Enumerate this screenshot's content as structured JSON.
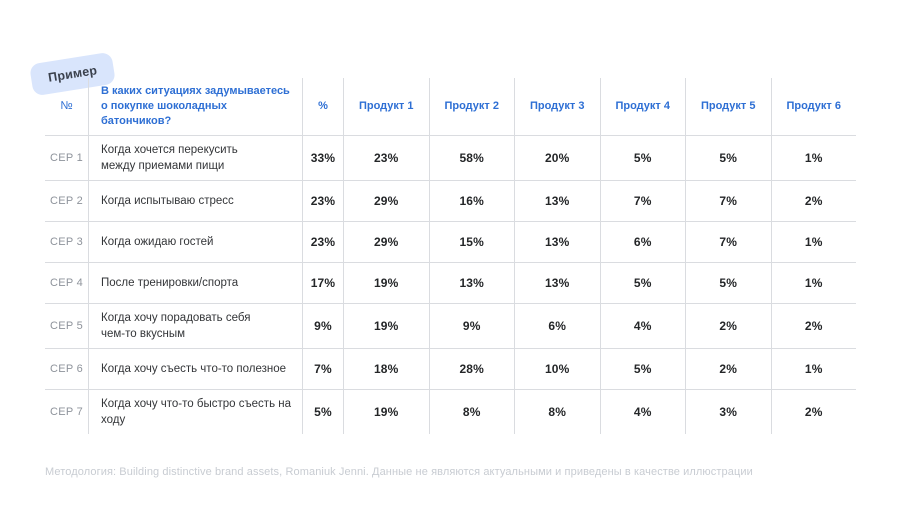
{
  "badge": {
    "label": "Пример"
  },
  "table": {
    "headers": {
      "num": "№",
      "question": "В каких ситуациях задумываетесь\nо покупке шоколадных батончиков?",
      "percent": "%",
      "products": [
        "Продукт 1",
        "Продукт 2",
        "Продукт 3",
        "Продукт 4",
        "Продукт 5",
        "Продукт 6"
      ]
    },
    "rows": [
      {
        "id": "CEP 1",
        "question": "Когда хочется перекусить\nмежду приемами пищи",
        "values": [
          "33%",
          "23%",
          "58%",
          "20%",
          "5%",
          "5%",
          "1%"
        ]
      },
      {
        "id": "CEP 2",
        "question": "Когда испытываю стресс",
        "values": [
          "23%",
          "29%",
          "16%",
          "13%",
          "7%",
          "7%",
          "2%"
        ]
      },
      {
        "id": "CEP 3",
        "question": "Когда ожидаю гостей",
        "values": [
          "23%",
          "29%",
          "15%",
          "13%",
          "6%",
          "7%",
          "1%"
        ]
      },
      {
        "id": "CEP 4",
        "question": "После тренировки/спорта",
        "values": [
          "17%",
          "19%",
          "13%",
          "13%",
          "5%",
          "5%",
          "1%"
        ]
      },
      {
        "id": "CEP 5",
        "question": "Когда хочу порадовать себя\nчем-то вкусным",
        "values": [
          "9%",
          "19%",
          "9%",
          "6%",
          "4%",
          "2%",
          "2%"
        ]
      },
      {
        "id": "CEP 6",
        "question": "Когда хочу съесть что-то полезное",
        "values": [
          "7%",
          "18%",
          "28%",
          "10%",
          "5%",
          "2%",
          "1%"
        ]
      },
      {
        "id": "CEP 7",
        "question": "Когда хочу что-то быстро съесть на ходу",
        "values": [
          "5%",
          "19%",
          "8%",
          "8%",
          "4%",
          "3%",
          "2%"
        ]
      }
    ]
  },
  "footer": {
    "note": "Методология: Building distinctive brand assets, Romaniuk Jenni. Данные не являются актуальными и приведены в качестве иллюстрации"
  },
  "colors": {
    "accent_blue": "#2e6fd4",
    "badge_bg": "#d9e5fc",
    "badge_text": "#3b414d",
    "grid_line": "#dadce0",
    "value_text": "#242628",
    "muted_gray": "#8e939b",
    "footer_gray": "#c8ccd2"
  },
  "chart_data": {
    "type": "table",
    "title": "В каких ситуациях задумываетесь о покупке шоколадных батончиков?",
    "columns": [
      "№",
      "В каких ситуациях задумываетесь о покупке шоколадных батончиков?",
      "%",
      "Продукт 1",
      "Продукт 2",
      "Продукт 3",
      "Продукт 4",
      "Продукт 5",
      "Продукт 6"
    ],
    "rows": [
      [
        "CEP 1",
        "Когда хочется перекусить между приемами пищи",
        "33%",
        "23%",
        "58%",
        "20%",
        "5%",
        "5%",
        "1%"
      ],
      [
        "CEP 2",
        "Когда испытываю стресс",
        "23%",
        "29%",
        "16%",
        "13%",
        "7%",
        "7%",
        "2%"
      ],
      [
        "CEP 3",
        "Когда ожидаю гостей",
        "23%",
        "29%",
        "15%",
        "13%",
        "6%",
        "7%",
        "1%"
      ],
      [
        "CEP 4",
        "После тренировки/спорта",
        "17%",
        "19%",
        "13%",
        "13%",
        "5%",
        "5%",
        "1%"
      ],
      [
        "CEP 5",
        "Когда хочу порадовать себя чем-то вкусным",
        "9%",
        "19%",
        "9%",
        "6%",
        "4%",
        "2%",
        "2%"
      ],
      [
        "CEP 6",
        "Когда хочу съесть что-то полезное",
        "7%",
        "18%",
        "28%",
        "10%",
        "5%",
        "2%",
        "1%"
      ],
      [
        "CEP 7",
        "Когда хочу что-то быстро съесть на ходу",
        "5%",
        "19%",
        "8%",
        "8%",
        "4%",
        "3%",
        "2%"
      ]
    ]
  }
}
